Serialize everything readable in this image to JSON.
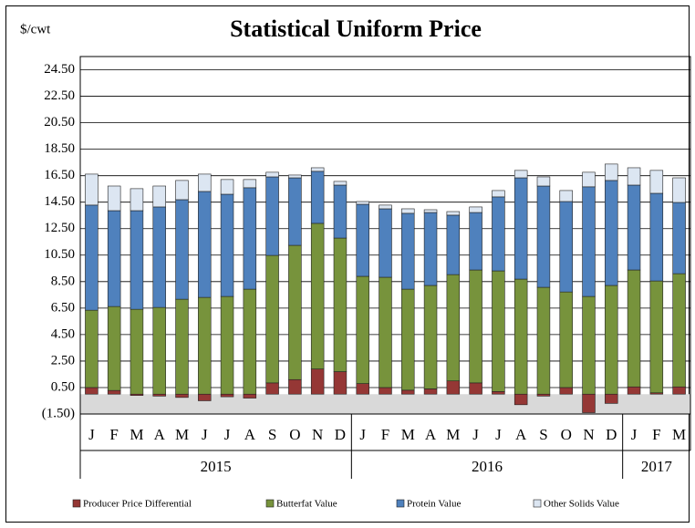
{
  "chart_data": {
    "type": "stacked-bar",
    "title": "Statistical Uniform Price",
    "y_unit": "$/cwt",
    "groups": [
      {
        "label": "2015",
        "categories": [
          "J",
          "F",
          "M",
          "A",
          "M",
          "J",
          "J",
          "A",
          "S",
          "O",
          "N",
          "D"
        ]
      },
      {
        "label": "2016",
        "categories": [
          "J",
          "F",
          "M",
          "A",
          "M",
          "J",
          "J",
          "A",
          "S",
          "O",
          "N",
          "D"
        ]
      },
      {
        "label": "2017",
        "categories": [
          "J",
          "F",
          "M"
        ]
      }
    ],
    "series": [
      {
        "name": "Producer Price Differential",
        "color": "#953735",
        "values": [
          0.5,
          0.28,
          -0.1,
          -0.15,
          -0.25,
          -0.5,
          -0.2,
          -0.3,
          0.85,
          1.1,
          1.9,
          1.7,
          0.8,
          0.5,
          0.3,
          0.4,
          1.0,
          0.85,
          0.2,
          -0.8,
          -0.15,
          0.5,
          -1.4,
          -0.7,
          0.55,
          0.1,
          0.55
        ]
      },
      {
        "name": "Butterfat Value",
        "color": "#77933c",
        "values": [
          5.84,
          6.34,
          6.41,
          6.55,
          7.17,
          7.31,
          7.38,
          7.93,
          9.63,
          10.14,
          11.0,
          10.09,
          8.1,
          8.33,
          7.63,
          7.81,
          8.03,
          8.53,
          9.11,
          8.69,
          8.07,
          7.22,
          7.38,
          8.21,
          8.83,
          8.45,
          8.55
        ]
      },
      {
        "name": "Protein Value",
        "color": "#4f81bd",
        "values": [
          7.94,
          7.24,
          7.45,
          7.59,
          7.52,
          8.0,
          7.72,
          7.66,
          5.93,
          5.1,
          3.93,
          4.0,
          5.44,
          5.17,
          5.73,
          5.51,
          4.49,
          4.34,
          5.59,
          7.65,
          7.65,
          6.83,
          8.28,
          7.93,
          6.41,
          6.62,
          5.38
        ]
      },
      {
        "name": "Other Solids Value",
        "color": "#dce6f2",
        "values": [
          2.34,
          1.86,
          1.66,
          1.58,
          1.45,
          1.31,
          1.11,
          0.62,
          0.35,
          0.21,
          0.27,
          0.28,
          0.21,
          0.28,
          0.34,
          0.21,
          0.27,
          0.42,
          0.48,
          0.56,
          0.69,
          0.83,
          1.1,
          1.24,
          1.31,
          1.73,
          1.86
        ]
      }
    ],
    "ylim": [
      -1.5,
      25.5
    ],
    "yticks": [
      {
        "value": -1.5,
        "label": "(1.50)"
      },
      {
        "value": 0.5,
        "label": "0.50"
      },
      {
        "value": 2.5,
        "label": "2.50"
      },
      {
        "value": 4.5,
        "label": "4.50"
      },
      {
        "value": 6.5,
        "label": "6.50"
      },
      {
        "value": 8.5,
        "label": "8.50"
      },
      {
        "value": 10.5,
        "label": "10.50"
      },
      {
        "value": 12.5,
        "label": "12.50"
      },
      {
        "value": 14.5,
        "label": "14.50"
      },
      {
        "value": 16.5,
        "label": "16.50"
      },
      {
        "value": 18.5,
        "label": "18.50"
      },
      {
        "value": 20.5,
        "label": "20.50"
      },
      {
        "value": 22.5,
        "label": "22.50"
      },
      {
        "value": 24.5,
        "label": "24.50"
      }
    ],
    "grid": true,
    "negative_tick_color": "#e00000",
    "negative_band_color": "#d9d9d9",
    "legend": "bottom"
  }
}
